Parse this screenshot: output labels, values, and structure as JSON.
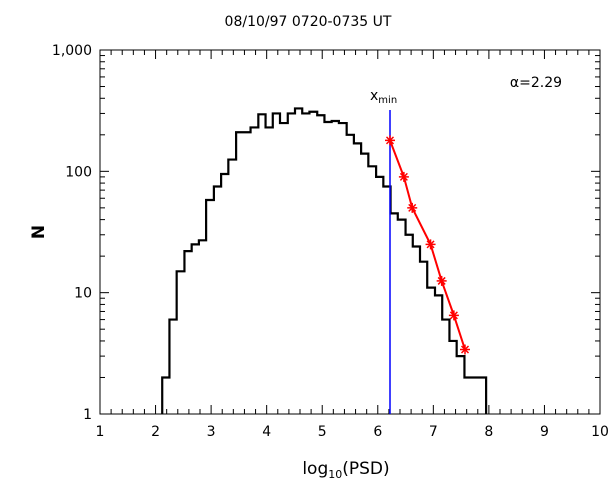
{
  "chart_data": {
    "type": "histogram-step",
    "title": "08/10/97  0720-0735 UT",
    "xlabel": "log",
    "xlabel_sub": "10",
    "xlabel_suffix": "(PSD)",
    "ylabel": "N",
    "xlim": [
      1,
      10
    ],
    "ylim": [
      1,
      1000
    ],
    "yscale": "log",
    "xticks": [
      1,
      2,
      3,
      4,
      5,
      6,
      7,
      8,
      9,
      10
    ],
    "xtick_labels": [
      "1",
      "2",
      "3",
      "4",
      "5",
      "6",
      "7",
      "8",
      "9",
      "10"
    ],
    "yticks": [
      1,
      10,
      100,
      1000
    ],
    "ytick_labels": [
      "1",
      "10",
      "100",
      "1,000"
    ],
    "series": [
      {
        "edges": [
          2.12,
          2.25,
          2.38,
          2.52,
          2.65,
          2.78,
          2.91,
          3.05,
          3.18,
          3.31,
          3.45,
          3.58,
          3.71,
          3.85,
          3.98,
          4.11,
          4.24,
          4.38,
          4.51,
          4.64,
          4.77,
          4.91,
          5.04,
          5.17,
          5.3,
          5.44,
          5.57,
          5.7,
          5.83,
          5.97,
          6.1,
          6.23,
          6.36,
          6.5,
          6.63,
          6.76,
          6.89,
          7.03,
          7.16,
          7.29,
          7.42,
          7.56,
          7.69,
          7.82,
          7.95
        ],
        "values": [
          2,
          6,
          15,
          22,
          25,
          27,
          58,
          75,
          95,
          125,
          210,
          210,
          230,
          295,
          230,
          300,
          250,
          300,
          330,
          300,
          310,
          290,
          255,
          260,
          250,
          200,
          170,
          140,
          110,
          90,
          75,
          45,
          40,
          30,
          24,
          18,
          11,
          9.5,
          6,
          4,
          3,
          2,
          2,
          2
        ]
      },
      {
        "x": [
          6.22,
          6.47,
          6.62,
          6.95,
          7.15,
          7.37,
          7.57
        ],
        "y": [
          180,
          90,
          50,
          25,
          12.5,
          6.5,
          3.4
        ]
      }
    ],
    "annotations": {
      "xmin_label": "x",
      "xmin_sub": "min",
      "xmin_value": 6.22,
      "alpha_label": "α=2.29"
    },
    "colors": {
      "histogram": "#000000",
      "fit": "#ff0000",
      "xmin_line": "#0000ff"
    }
  }
}
